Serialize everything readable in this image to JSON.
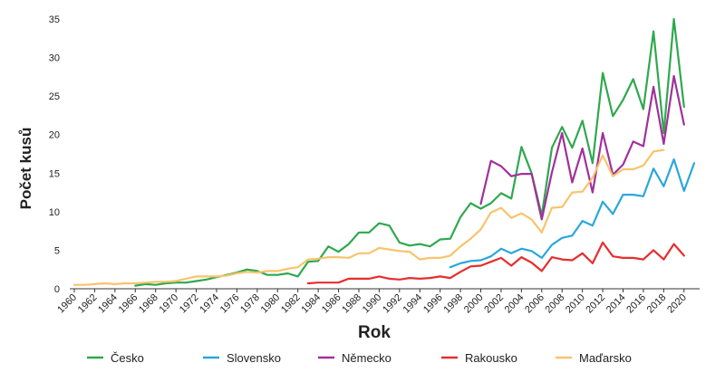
{
  "chart_data": {
    "type": "line",
    "xlabel": "Rok",
    "ylabel": "Počet kusů",
    "xlim": [
      1960,
      2021
    ],
    "ylim": [
      0,
      35
    ],
    "y_ticks": [
      0,
      5,
      10,
      15,
      20,
      25,
      30,
      35
    ],
    "x_ticks": [
      "1960",
      "1962",
      "1964",
      "1966",
      "1968",
      "1970",
      "1972",
      "1974",
      "1976",
      "1978",
      "1980",
      "1982",
      "1984",
      "1986",
      "1988",
      "1990",
      "1992",
      "1994",
      "1996",
      "1998",
      "2000",
      "2002",
      "2004",
      "2006",
      "2008",
      "2010",
      "2012",
      "2014",
      "2016",
      "2018",
      "2020"
    ],
    "grid": false,
    "legend_position": "bottom",
    "series": [
      {
        "name": "Česko",
        "color": "#2fa84f",
        "points": [
          [
            1966,
            0.4
          ],
          [
            1967,
            0.6
          ],
          [
            1968,
            0.5
          ],
          [
            1969,
            0.7
          ],
          [
            1970,
            0.8
          ],
          [
            1971,
            0.8
          ],
          [
            1972,
            1.0
          ],
          [
            1973,
            1.2
          ],
          [
            1974,
            1.5
          ],
          [
            1975,
            1.8
          ],
          [
            1976,
            2.1
          ],
          [
            1977,
            2.5
          ],
          [
            1978,
            2.3
          ],
          [
            1979,
            1.8
          ],
          [
            1980,
            1.8
          ],
          [
            1981,
            2.0
          ],
          [
            1982,
            1.6
          ],
          [
            1983,
            3.5
          ],
          [
            1984,
            3.6
          ],
          [
            1985,
            5.5
          ],
          [
            1986,
            4.8
          ],
          [
            1987,
            5.8
          ],
          [
            1988,
            7.3
          ],
          [
            1989,
            7.3
          ],
          [
            1990,
            8.5
          ],
          [
            1991,
            8.2
          ],
          [
            1992,
            6.0
          ],
          [
            1993,
            5.6
          ],
          [
            1994,
            5.8
          ],
          [
            1995,
            5.5
          ],
          [
            1996,
            6.4
          ],
          [
            1997,
            6.5
          ],
          [
            1998,
            9.3
          ],
          [
            1999,
            11.1
          ],
          [
            2000,
            10.4
          ],
          [
            2001,
            11.1
          ],
          [
            2002,
            12.4
          ],
          [
            2003,
            11.7
          ],
          [
            2004,
            18.4
          ],
          [
            2005,
            15.0
          ],
          [
            2006,
            9.5
          ],
          [
            2007,
            18.3
          ],
          [
            2008,
            21.0
          ],
          [
            2009,
            18.3
          ],
          [
            2010,
            21.8
          ],
          [
            2011,
            16.3
          ],
          [
            2012,
            28.0
          ],
          [
            2013,
            22.4
          ],
          [
            2014,
            24.5
          ],
          [
            2015,
            27.2
          ],
          [
            2016,
            23.3
          ],
          [
            2017,
            33.4
          ],
          [
            2018,
            20.2
          ],
          [
            2019,
            35.0
          ],
          [
            2020,
            23.6
          ]
        ]
      },
      {
        "name": "Slovensko",
        "color": "#2aa7dc",
        "points": [
          [
            1997,
            2.8
          ],
          [
            1998,
            3.3
          ],
          [
            1999,
            3.6
          ],
          [
            2000,
            3.7
          ],
          [
            2001,
            4.2
          ],
          [
            2002,
            5.2
          ],
          [
            2003,
            4.6
          ],
          [
            2004,
            5.2
          ],
          [
            2005,
            4.9
          ],
          [
            2006,
            4.0
          ],
          [
            2007,
            5.7
          ],
          [
            2008,
            6.6
          ],
          [
            2009,
            6.9
          ],
          [
            2010,
            8.8
          ],
          [
            2011,
            8.2
          ],
          [
            2012,
            11.3
          ],
          [
            2013,
            9.7
          ],
          [
            2014,
            12.2
          ],
          [
            2015,
            12.2
          ],
          [
            2016,
            12.0
          ],
          [
            2017,
            15.6
          ],
          [
            2018,
            13.3
          ],
          [
            2019,
            16.8
          ],
          [
            2020,
            12.7
          ],
          [
            2021,
            16.3
          ]
        ]
      },
      {
        "name": "Německo",
        "color": "#a0319a",
        "points": [
          [
            2000,
            11.0
          ],
          [
            2001,
            16.6
          ],
          [
            2002,
            15.9
          ],
          [
            2003,
            14.6
          ],
          [
            2004,
            14.9
          ],
          [
            2005,
            14.9
          ],
          [
            2006,
            9.0
          ],
          [
            2007,
            15.1
          ],
          [
            2008,
            20.2
          ],
          [
            2009,
            13.8
          ],
          [
            2010,
            18.2
          ],
          [
            2011,
            12.5
          ],
          [
            2012,
            20.2
          ],
          [
            2013,
            14.8
          ],
          [
            2014,
            16.1
          ],
          [
            2015,
            19.1
          ],
          [
            2016,
            18.5
          ],
          [
            2017,
            26.2
          ],
          [
            2018,
            18.8
          ],
          [
            2019,
            27.6
          ],
          [
            2020,
            21.3
          ]
        ]
      },
      {
        "name": "Rakousko",
        "color": "#e52e2e",
        "points": [
          [
            1983,
            0.7
          ],
          [
            1984,
            0.8
          ],
          [
            1985,
            0.8
          ],
          [
            1986,
            0.8
          ],
          [
            1987,
            1.3
          ],
          [
            1988,
            1.3
          ],
          [
            1989,
            1.3
          ],
          [
            1990,
            1.6
          ],
          [
            1991,
            1.3
          ],
          [
            1992,
            1.2
          ],
          [
            1993,
            1.4
          ],
          [
            1994,
            1.3
          ],
          [
            1995,
            1.4
          ],
          [
            1996,
            1.6
          ],
          [
            1997,
            1.4
          ],
          [
            1998,
            2.2
          ],
          [
            1999,
            2.9
          ],
          [
            2000,
            3.0
          ],
          [
            2001,
            3.5
          ],
          [
            2002,
            4.0
          ],
          [
            2003,
            3.0
          ],
          [
            2004,
            4.1
          ],
          [
            2005,
            3.4
          ],
          [
            2006,
            2.3
          ],
          [
            2007,
            4.1
          ],
          [
            2008,
            3.8
          ],
          [
            2009,
            3.7
          ],
          [
            2010,
            4.6
          ],
          [
            2011,
            3.3
          ],
          [
            2012,
            6.0
          ],
          [
            2013,
            4.2
          ],
          [
            2014,
            4.0
          ],
          [
            2015,
            4.0
          ],
          [
            2016,
            3.8
          ],
          [
            2017,
            5.0
          ],
          [
            2018,
            3.8
          ],
          [
            2019,
            5.8
          ],
          [
            2020,
            4.3
          ]
        ]
      },
      {
        "name": "Maďarsko",
        "color": "#f7c46c",
        "points": [
          [
            1960,
            0.5
          ],
          [
            1961,
            0.5
          ],
          [
            1962,
            0.6
          ],
          [
            1963,
            0.7
          ],
          [
            1964,
            0.6
          ],
          [
            1965,
            0.7
          ],
          [
            1966,
            0.7
          ],
          [
            1967,
            0.8
          ],
          [
            1968,
            0.9
          ],
          [
            1969,
            0.9
          ],
          [
            1970,
            1.0
          ],
          [
            1971,
            1.3
          ],
          [
            1972,
            1.6
          ],
          [
            1973,
            1.6
          ],
          [
            1974,
            1.6
          ],
          [
            1975,
            1.7
          ],
          [
            1976,
            2.0
          ],
          [
            1977,
            2.2
          ],
          [
            1978,
            2.1
          ],
          [
            1979,
            2.3
          ],
          [
            1980,
            2.3
          ],
          [
            1981,
            2.6
          ],
          [
            1982,
            2.8
          ],
          [
            1983,
            3.8
          ],
          [
            1984,
            3.9
          ],
          [
            1985,
            4.1
          ],
          [
            1986,
            4.1
          ],
          [
            1987,
            4.0
          ],
          [
            1988,
            4.6
          ],
          [
            1989,
            4.6
          ],
          [
            1990,
            5.3
          ],
          [
            1991,
            5.1
          ],
          [
            1992,
            4.9
          ],
          [
            1993,
            4.8
          ],
          [
            1994,
            3.8
          ],
          [
            1995,
            4.0
          ],
          [
            1996,
            4.0
          ],
          [
            1997,
            4.3
          ],
          [
            1998,
            5.5
          ],
          [
            1999,
            6.5
          ],
          [
            2000,
            7.7
          ],
          [
            2001,
            9.9
          ],
          [
            2002,
            10.5
          ],
          [
            2003,
            9.2
          ],
          [
            2004,
            9.8
          ],
          [
            2005,
            9.0
          ],
          [
            2006,
            7.3
          ],
          [
            2007,
            10.5
          ],
          [
            2008,
            10.6
          ],
          [
            2009,
            12.5
          ],
          [
            2010,
            12.6
          ],
          [
            2011,
            14.4
          ],
          [
            2012,
            17.3
          ],
          [
            2013,
            14.6
          ],
          [
            2014,
            15.5
          ],
          [
            2015,
            15.5
          ],
          [
            2016,
            16.0
          ],
          [
            2017,
            17.8
          ],
          [
            2018,
            18.0
          ]
        ]
      }
    ]
  }
}
